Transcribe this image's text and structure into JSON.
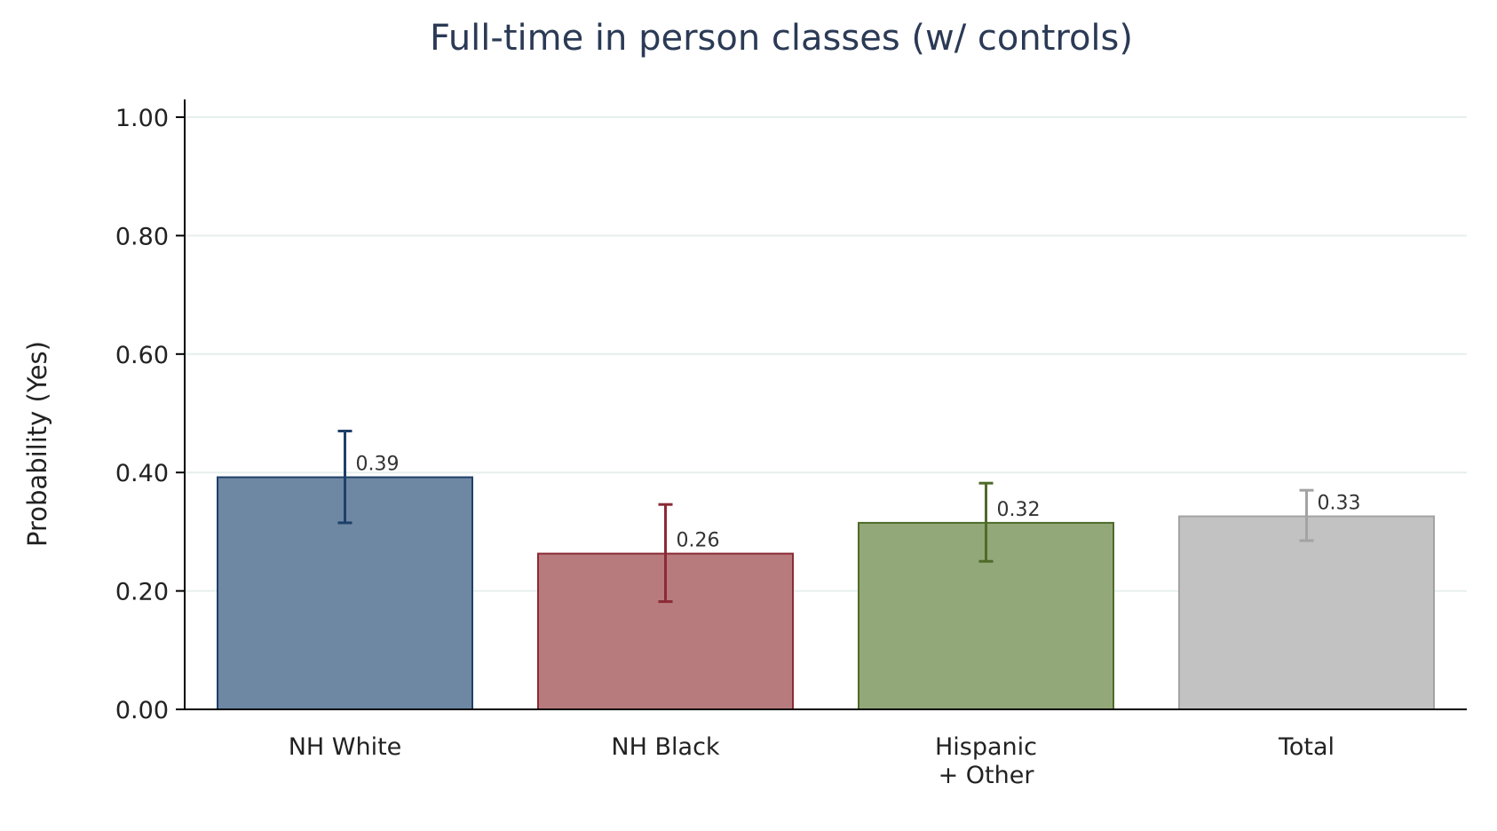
{
  "chart_data": {
    "type": "bar",
    "title": "Full-time in person classes (w/ controls)",
    "xlabel": "",
    "ylabel": "Probability (Yes)",
    "ylim": [
      0,
      1.0
    ],
    "yticks": [
      "0.00",
      "0.20",
      "0.40",
      "0.60",
      "0.80",
      "1.00"
    ],
    "ytick_values": [
      0,
      0.2,
      0.4,
      0.6,
      0.8,
      1.0
    ],
    "grid": true,
    "legend": "none",
    "categories": [
      {
        "label_lines": [
          "NH White"
        ],
        "value": 0.392,
        "value_label": "0.39",
        "ci_low": 0.315,
        "ci_high": 0.47,
        "fill": "#6e88a4",
        "stroke": "#1f4068"
      },
      {
        "label_lines": [
          "NH Black"
        ],
        "value": 0.263,
        "value_label": "0.26",
        "ci_low": 0.182,
        "ci_high": 0.346,
        "fill": "#b77b7e",
        "stroke": "#8b2a35"
      },
      {
        "label_lines": [
          "Hispanic",
          "+ Other"
        ],
        "value": 0.315,
        "value_label": "0.32",
        "ci_low": 0.25,
        "ci_high": 0.382,
        "fill": "#93a878",
        "stroke": "#4e6b2a"
      },
      {
        "label_lines": [
          "Total"
        ],
        "value": 0.326,
        "value_label": "0.33",
        "ci_low": 0.285,
        "ci_high": 0.37,
        "fill": "#c2c2c2",
        "stroke": "#a3a3a3"
      }
    ],
    "colors": {
      "grid": "#e6efee",
      "axis": "#000000",
      "title": "#2b3a55"
    }
  }
}
